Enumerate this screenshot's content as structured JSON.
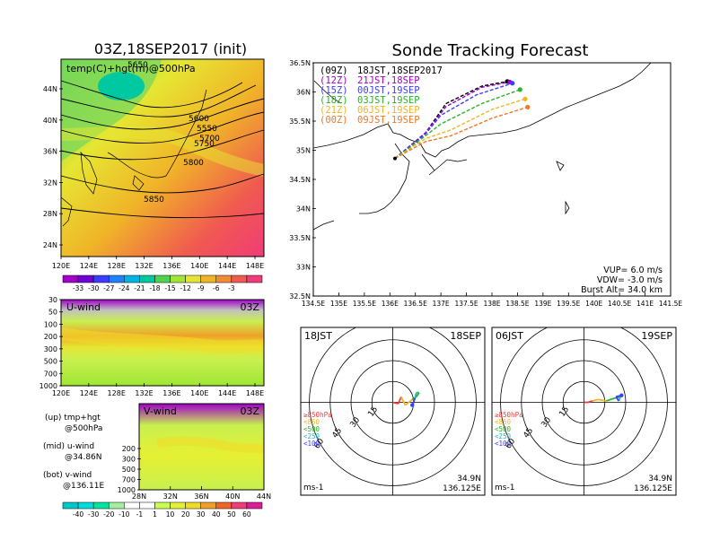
{
  "left_panel": {
    "title": "03Z,18SEP2017 (init)",
    "map_label": "temp(C)+hgt(m)@500hPa",
    "lat_ticks": [
      "44N",
      "40N",
      "36N",
      "32N",
      "28N",
      "24N"
    ],
    "lon_ticks": [
      "120E",
      "124E",
      "128E",
      "132E",
      "136E",
      "140E",
      "144E",
      "148E"
    ],
    "contour_labels": [
      "5550",
      "5600",
      "5650",
      "5700",
      "5750",
      "5800",
      "5850"
    ],
    "temp_colorbar": {
      "labels": [
        "-33",
        "-30",
        "-27",
        "-24",
        "-21",
        "-18",
        "-15",
        "-12",
        "-9",
        "-6",
        "-3"
      ],
      "colors": [
        "#a000c8",
        "#7000d8",
        "#3c3cff",
        "#2080ff",
        "#00b4e6",
        "#00c8a0",
        "#50d250",
        "#a0e632",
        "#e6e632",
        "#f0b428",
        "#f08c32",
        "#f05a50",
        "#f03c78"
      ]
    },
    "u_wind": {
      "label": "U-wind",
      "time": "03Z",
      "p_ticks": [
        "30",
        "50",
        "100",
        "200",
        "300",
        "500",
        "700",
        "1000"
      ],
      "lon_ticks": [
        "120E",
        "124E",
        "128E",
        "132E",
        "136E",
        "140E",
        "144E",
        "148E"
      ]
    },
    "v_wind": {
      "label": "V-wind",
      "time": "03Z",
      "p_ticks": [
        "200",
        "300",
        "500",
        "700",
        "1000"
      ],
      "lat_ticks": [
        "28N",
        "32N",
        "36N",
        "40N",
        "44N"
      ]
    },
    "wind_colorbar": {
      "labels": [
        "-40",
        "-30",
        "-20",
        "-10",
        "-1",
        "1",
        "10",
        "20",
        "30",
        "40",
        "50",
        "60"
      ],
      "colors": [
        "#00c8c8",
        "#00dcdc",
        "#00e6a0",
        "#a0f0a0",
        "#ffffff",
        "#ffffff",
        "#c8ff50",
        "#e6f032",
        "#f0dc28",
        "#f0a028",
        "#f06428",
        "#f03c78",
        "#dc1e96"
      ]
    },
    "legend": [
      {
        "a": "(up) tmp+hgt",
        "b": "@500hPa"
      },
      {
        "a": "(mid) u-wind",
        "b": "@34.86N"
      },
      {
        "a": "(bot) v-wind",
        "b": "@136.11E"
      }
    ]
  },
  "right_panel": {
    "title": "Sonde Tracking Forecast",
    "lat_ticks": [
      "36.5N",
      "36N",
      "35.5N",
      "35N",
      "34.5N",
      "34N",
      "33.5N",
      "33N",
      "32.5N"
    ],
    "lon_ticks": [
      "134.5E",
      "135E",
      "135.5E",
      "136E",
      "136.5E",
      "137E",
      "137.5E",
      "138E",
      "138.5E",
      "139E",
      "139.5E",
      "140E",
      "140.5E",
      "141E",
      "141.5E"
    ],
    "launches": [
      {
        "utc": "(09Z)",
        "jst": "18JST,18SEP2017",
        "color": "#000000"
      },
      {
        "utc": "(12Z)",
        "jst": "21JST,18SEP",
        "color": "#a000c8"
      },
      {
        "utc": "(15Z)",
        "jst": "00JST,19SEP",
        "color": "#3c3cff"
      },
      {
        "utc": "(18Z)",
        "jst": "03JST,19SEP",
        "color": "#28b428"
      },
      {
        "utc": "(21Z)",
        "jst": "06JST,19SEP",
        "color": "#f0b428"
      },
      {
        "utc": "(00Z)",
        "jst": "09JST,19SEP",
        "color": "#f07828"
      }
    ],
    "params": {
      "vup": "VUP= 6.0 m/s",
      "vdw": "VDW= -3.0 m/s",
      "burst": "Burst Alt= 34.0 km"
    }
  },
  "chart_data": [
    {
      "type": "line",
      "title": "Sonde Tracking Forecast",
      "x_unit": "deg E",
      "y_unit": "deg N",
      "xlim": [
        134.5,
        141.5
      ],
      "ylim": [
        32.5,
        36.5
      ],
      "launch_point": [
        136.1,
        34.86
      ],
      "series": [
        {
          "name": "(09Z) 18JST,18SEP2017",
          "points": [
            [
              136.1,
              34.86
            ],
            [
              136.7,
              35.3
            ],
            [
              137.1,
              35.8
            ],
            [
              137.8,
              36.1
            ],
            [
              138.3,
              36.18
            ]
          ]
        },
        {
          "name": "(12Z) 21JST,18SEP",
          "points": [
            [
              136.1,
              34.86
            ],
            [
              136.7,
              35.3
            ],
            [
              137.1,
              35.75
            ],
            [
              137.8,
              36.08
            ],
            [
              138.35,
              36.17
            ]
          ]
        },
        {
          "name": "(15Z) 00JST,19SEP",
          "points": [
            [
              136.1,
              34.86
            ],
            [
              136.7,
              35.28
            ],
            [
              137.0,
              35.6
            ],
            [
              137.7,
              35.95
            ],
            [
              138.4,
              36.15
            ]
          ]
        },
        {
          "name": "(18Z) 03JST,19SEP",
          "points": [
            [
              136.1,
              34.86
            ],
            [
              136.7,
              35.25
            ],
            [
              137.0,
              35.45
            ],
            [
              137.8,
              35.8
            ],
            [
              138.55,
              36.04
            ]
          ]
        },
        {
          "name": "(21Z) 06JST,19SEP",
          "points": [
            [
              136.1,
              34.86
            ],
            [
              136.7,
              35.2
            ],
            [
              137.2,
              35.35
            ],
            [
              138.0,
              35.7
            ],
            [
              138.65,
              35.88
            ]
          ]
        },
        {
          "name": "(00Z) 09JST,19SEP",
          "points": [
            [
              136.1,
              34.86
            ],
            [
              136.7,
              35.15
            ],
            [
              137.2,
              35.25
            ],
            [
              138.0,
              35.55
            ],
            [
              138.7,
              35.74
            ]
          ]
        }
      ]
    },
    {
      "type": "line",
      "subtype": "hodograph",
      "time_label": "18JST",
      "date_label": "18SEP",
      "unit_label": "ms-1",
      "location": {
        "lat": "34.9N",
        "lon": "136.125E"
      },
      "ring_labels": [
        "15",
        "30",
        "45",
        "60"
      ],
      "level_legend": [
        "≥850hPa",
        "<850",
        "<500",
        "<250",
        "<100"
      ],
      "level_colors": [
        "#f03c3c",
        "#f0b428",
        "#28b428",
        "#28b4b4",
        "#3c3cff"
      ],
      "uv_points": [
        [
          0,
          0
        ],
        [
          4,
          -1
        ],
        [
          6,
          4
        ],
        [
          9,
          -2
        ],
        [
          14,
          2
        ],
        [
          17,
          4
        ],
        [
          19,
          7
        ],
        [
          17,
          7
        ],
        [
          16,
          3
        ],
        [
          15,
          0
        ],
        [
          14,
          -2
        ]
      ]
    },
    {
      "type": "line",
      "subtype": "hodograph",
      "time_label": "06JST",
      "date_label": "19SEP",
      "unit_label": "ms-1",
      "location": {
        "lat": "34.9N",
        "lon": "136.125E"
      },
      "ring_labels": [
        "15",
        "30",
        "45",
        "60"
      ],
      "level_legend": [
        "≥850hPa",
        "<850",
        "<500",
        "<250",
        "<100"
      ],
      "level_colors": [
        "#f03c3c",
        "#f0b428",
        "#28b428",
        "#28b4b4",
        "#3c3cff"
      ],
      "uv_points": [
        [
          0,
          0
        ],
        [
          3,
          0
        ],
        [
          6,
          1
        ],
        [
          10,
          2
        ],
        [
          16,
          1
        ],
        [
          22,
          3
        ],
        [
          26,
          4
        ],
        [
          27,
          6
        ],
        [
          25,
          1
        ],
        [
          23,
          4
        ],
        [
          27,
          5
        ]
      ]
    }
  ]
}
